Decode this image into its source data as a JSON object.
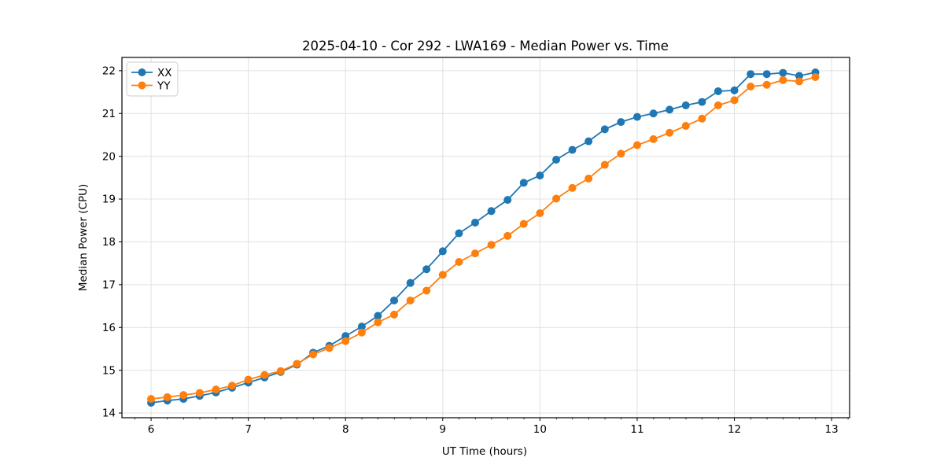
{
  "chart_data": {
    "type": "line",
    "title": "2025-04-10 - Cor 292 - LWA169 - Median Power vs. Time",
    "xlabel": "UT Time (hours)",
    "ylabel": "Median Power (CPU)",
    "xlim": [
      5.7,
      13.185
    ],
    "ylim": [
      13.89,
      22.31
    ],
    "xticks": [
      6,
      7,
      8,
      9,
      10,
      11,
      12,
      13
    ],
    "yticks": [
      14,
      15,
      16,
      17,
      18,
      19,
      20,
      21,
      22
    ],
    "minor_xtick_step": 0.1667,
    "grid": true,
    "grid_color": "#e0e0e0",
    "legend_position": "upper-left",
    "x": [
      6.0,
      6.167,
      6.333,
      6.5,
      6.667,
      6.833,
      7.0,
      7.167,
      7.333,
      7.5,
      7.667,
      7.833,
      8.0,
      8.167,
      8.333,
      8.5,
      8.667,
      8.833,
      9.0,
      9.167,
      9.333,
      9.5,
      9.667,
      9.833,
      10.0,
      10.167,
      10.333,
      10.5,
      10.667,
      10.833,
      11.0,
      11.167,
      11.333,
      11.5,
      11.667,
      11.833,
      12.0,
      12.167,
      12.333,
      12.5,
      12.667,
      12.833
    ],
    "series": [
      {
        "name": "XX",
        "color": "#1f77b4",
        "values": [
          14.24,
          14.29,
          14.33,
          14.4,
          14.48,
          14.59,
          14.71,
          14.83,
          14.96,
          15.13,
          15.41,
          15.57,
          15.8,
          16.02,
          16.27,
          16.63,
          17.04,
          17.36,
          17.78,
          18.2,
          18.45,
          18.72,
          18.98,
          19.38,
          19.55,
          19.92,
          20.15,
          20.35,
          20.63,
          20.8,
          20.92,
          21.0,
          21.09,
          21.19,
          21.27,
          21.52,
          21.54,
          21.92,
          21.92,
          21.95,
          21.88,
          21.96
        ]
      },
      {
        "name": "YY",
        "color": "#ff7f0e",
        "values": [
          14.33,
          14.37,
          14.42,
          14.47,
          14.55,
          14.64,
          14.78,
          14.89,
          14.98,
          15.15,
          15.37,
          15.52,
          15.68,
          15.88,
          16.12,
          16.3,
          16.63,
          16.86,
          17.23,
          17.53,
          17.73,
          17.93,
          18.14,
          18.42,
          18.67,
          19.01,
          19.26,
          19.48,
          19.8,
          20.06,
          20.26,
          20.4,
          20.55,
          20.71,
          20.88,
          21.19,
          21.31,
          21.63,
          21.67,
          21.78,
          21.75,
          21.85
        ]
      }
    ]
  }
}
